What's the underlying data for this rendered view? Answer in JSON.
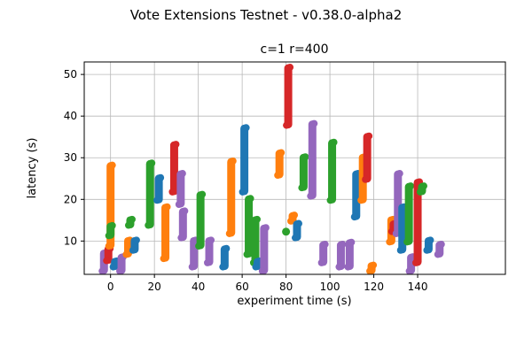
{
  "chart_data": {
    "type": "scatter",
    "title": "Vote Extensions Testnet - v0.38.0-alpha2",
    "subtitle": "c=1 r=400",
    "xlabel": "experiment time (s)",
    "ylabel": "latency (s)",
    "xticks": [
      0,
      20,
      40,
      60,
      80,
      100,
      120,
      140
    ],
    "yticks": [
      10,
      20,
      30,
      40,
      50
    ],
    "xlim": [
      -12,
      180
    ],
    "ylim": [
      2,
      53
    ],
    "grid": true,
    "legend_position": "none",
    "colors": {
      "blue": "#1f77b4",
      "orange": "#ff7f0e",
      "green": "#2ca02c",
      "red": "#d62728",
      "purple": "#9467bd"
    },
    "clusters": [
      {
        "x": -3,
        "ymin": 3,
        "ymax": 7,
        "color": "purple"
      },
      {
        "x": -1,
        "ymin": 5.5,
        "ymax": 8,
        "color": "red"
      },
      {
        "x": 0,
        "ymin": 9,
        "ymax": 28,
        "color": "orange"
      },
      {
        "x": 0,
        "ymin": 11.5,
        "ymax": 13.5,
        "color": "green"
      },
      {
        "x": 2,
        "ymin": 4,
        "ymax": 5,
        "color": "blue"
      },
      {
        "x": 5,
        "ymin": 3,
        "ymax": 6,
        "color": "purple"
      },
      {
        "x": 8,
        "ymin": 7,
        "ymax": 10,
        "color": "orange"
      },
      {
        "x": 9,
        "ymin": 14,
        "ymax": 15,
        "color": "green"
      },
      {
        "x": 11,
        "ymin": 8,
        "ymax": 10,
        "color": "blue"
      },
      {
        "x": 18,
        "ymin": 14,
        "ymax": 28.5,
        "color": "green"
      },
      {
        "x": 22,
        "ymin": 20,
        "ymax": 25,
        "color": "blue"
      },
      {
        "x": 25,
        "ymin": 6,
        "ymax": 18,
        "color": "orange"
      },
      {
        "x": 29,
        "ymin": 22,
        "ymax": 33,
        "color": "red"
      },
      {
        "x": 32,
        "ymin": 19,
        "ymax": 26,
        "color": "purple"
      },
      {
        "x": 33,
        "ymin": 11,
        "ymax": 17,
        "color": "purple"
      },
      {
        "x": 38,
        "ymin": 4,
        "ymax": 10,
        "color": "purple"
      },
      {
        "x": 41,
        "ymin": 9,
        "ymax": 21,
        "color": "green"
      },
      {
        "x": 45,
        "ymin": 5,
        "ymax": 10,
        "color": "purple"
      },
      {
        "x": 52,
        "ymin": 4,
        "ymax": 8,
        "color": "blue"
      },
      {
        "x": 55,
        "ymin": 12,
        "ymax": 29,
        "color": "orange"
      },
      {
        "x": 61,
        "ymin": 22,
        "ymax": 37,
        "color": "blue"
      },
      {
        "x": 63,
        "ymin": 7,
        "ymax": 20,
        "color": "green"
      },
      {
        "x": 66,
        "ymin": 5,
        "ymax": 15,
        "color": "green"
      },
      {
        "x": 67,
        "ymin": 4,
        "ymax": 5,
        "color": "blue"
      },
      {
        "x": 70,
        "ymin": 3,
        "ymax": 13,
        "color": "purple"
      },
      {
        "x": 77,
        "ymin": 26,
        "ymax": 31,
        "color": "orange"
      },
      {
        "x": 80,
        "ymin": 12,
        "ymax": 12.5,
        "color": "green"
      },
      {
        "x": 81,
        "ymin": 38,
        "ymax": 51.5,
        "color": "red"
      },
      {
        "x": 83,
        "ymin": 15,
        "ymax": 16,
        "color": "orange"
      },
      {
        "x": 85,
        "ymin": 11,
        "ymax": 14,
        "color": "blue"
      },
      {
        "x": 88,
        "ymin": 23,
        "ymax": 30,
        "color": "green"
      },
      {
        "x": 92,
        "ymin": 21,
        "ymax": 38,
        "color": "purple"
      },
      {
        "x": 97,
        "ymin": 5,
        "ymax": 9,
        "color": "purple"
      },
      {
        "x": 101,
        "ymin": 20,
        "ymax": 33.5,
        "color": "green"
      },
      {
        "x": 105,
        "ymin": 4,
        "ymax": 9,
        "color": "purple"
      },
      {
        "x": 109,
        "ymin": 4,
        "ymax": 9.5,
        "color": "purple"
      },
      {
        "x": 112,
        "ymin": 16,
        "ymax": 26,
        "color": "blue"
      },
      {
        "x": 115,
        "ymin": 20,
        "ymax": 30,
        "color": "orange"
      },
      {
        "x": 117,
        "ymin": 25,
        "ymax": 35,
        "color": "red"
      },
      {
        "x": 119,
        "ymin": 3,
        "ymax": 4,
        "color": "orange"
      },
      {
        "x": 128,
        "ymin": 10,
        "ymax": 15,
        "color": "orange"
      },
      {
        "x": 129,
        "ymin": 12.5,
        "ymax": 14,
        "color": "red"
      },
      {
        "x": 131,
        "ymin": 12,
        "ymax": 26,
        "color": "purple"
      },
      {
        "x": 133,
        "ymin": 8,
        "ymax": 18,
        "color": "blue"
      },
      {
        "x": 136,
        "ymin": 10,
        "ymax": 23,
        "color": "green"
      },
      {
        "x": 137,
        "ymin": 3,
        "ymax": 6,
        "color": "purple"
      },
      {
        "x": 140,
        "ymin": 5,
        "ymax": 24,
        "color": "red"
      },
      {
        "x": 142,
        "ymin": 22,
        "ymax": 23,
        "color": "green"
      },
      {
        "x": 145,
        "ymin": 8,
        "ymax": 10,
        "color": "blue"
      },
      {
        "x": 150,
        "ymin": 7,
        "ymax": 9,
        "color": "purple"
      }
    ]
  }
}
